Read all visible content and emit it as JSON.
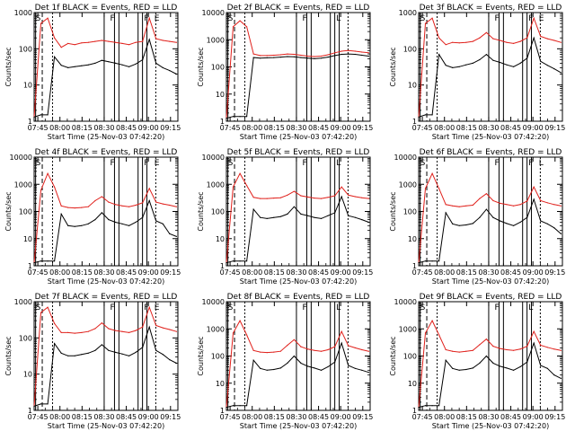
{
  "figure": {
    "colors": {
      "events": "#000000",
      "lld": "#e0201b",
      "axis": "#000000"
    }
  },
  "chart_data": [
    {
      "type": "line",
      "title": "Det 1f BLACK = Events, RED = LLD",
      "xlabel": "Start Time (25-Nov-03 07:42:20)",
      "ylabel": "Counts/sec",
      "y_scale": "log",
      "ylim": [
        1,
        1000
      ],
      "y_ticks": [
        "1",
        "10",
        "100",
        "1000"
      ],
      "x_ticks": [
        "07:45",
        "08:00",
        "08:15",
        "08:30",
        "08:45",
        "09:00",
        "09:15"
      ],
      "markers": [
        "S",
        "F",
        "F",
        "E"
      ],
      "series": [
        {
          "name": "LLD",
          "color": "#e0201b",
          "values": [
            1.3,
            500,
            700,
            200,
            110,
            140,
            130,
            145,
            150,
            160,
            170,
            160,
            150,
            140,
            130,
            150,
            160,
            700,
            190,
            170,
            160,
            150
          ]
        },
        {
          "name": "Events",
          "color": "#000000",
          "values": [
            1.3,
            1.5,
            1.5,
            60,
            35,
            30,
            32,
            34,
            36,
            40,
            48,
            44,
            40,
            36,
            32,
            38,
            50,
            180,
            40,
            30,
            25,
            20
          ]
        }
      ]
    },
    {
      "type": "line",
      "title": "Det 2f BLACK = Events, RED = LLD",
      "xlabel": "Start Time (25-Nov-03 07:42:20)",
      "ylabel": "Counts/sec",
      "y_scale": "log",
      "ylim": [
        1,
        10000
      ],
      "y_ticks": [
        "1",
        "10",
        "100",
        "1000",
        "10000"
      ],
      "x_ticks": [
        "07:45",
        "08:00",
        "08:15",
        "08:30",
        "08:45",
        "09:00",
        "09:15"
      ],
      "markers": [
        "S",
        "F",
        "L"
      ],
      "series": [
        {
          "name": "LLD",
          "color": "#e0201b",
          "values": [
            1.3,
            3000,
            5000,
            3000,
            300,
            260,
            260,
            270,
            280,
            300,
            290,
            270,
            250,
            240,
            250,
            280,
            330,
            380,
            400,
            380,
            350,
            330
          ]
        },
        {
          "name": "Events",
          "color": "#000000",
          "values": [
            1.3,
            1.5,
            1.5,
            1.5,
            220,
            210,
            215,
            220,
            230,
            240,
            235,
            220,
            210,
            200,
            210,
            230,
            260,
            290,
            300,
            290,
            270,
            250
          ]
        }
      ]
    },
    {
      "type": "line",
      "title": "Det 3f BLACK = Events, RED = LLD",
      "xlabel": "Start Time (25-Nov-03 07:42:20)",
      "ylabel": "Counts/sec",
      "y_scale": "log",
      "ylim": [
        1,
        1000
      ],
      "y_ticks": [
        "1",
        "10",
        "100",
        "1000"
      ],
      "x_ticks": [
        "07:45",
        "08:00",
        "08:15",
        "08:30",
        "08:45",
        "09:00",
        "09:15"
      ],
      "markers": [
        "S",
        "F",
        "F",
        "E"
      ],
      "series": [
        {
          "name": "LLD",
          "color": "#e0201b",
          "values": [
            1.3,
            500,
            700,
            200,
            130,
            150,
            145,
            150,
            160,
            200,
            280,
            190,
            170,
            150,
            140,
            160,
            200,
            700,
            220,
            190,
            170,
            150
          ]
        },
        {
          "name": "Events",
          "color": "#000000",
          "values": [
            1.3,
            1.5,
            1.5,
            70,
            35,
            30,
            32,
            36,
            40,
            50,
            70,
            48,
            42,
            36,
            32,
            40,
            55,
            200,
            45,
            35,
            28,
            22
          ]
        }
      ]
    },
    {
      "type": "line",
      "title": "Det 4f BLACK = Events, RED = LLD",
      "xlabel": "Start Time (25-Nov-03 07:42:20)",
      "ylabel": "Counts/sec",
      "y_scale": "log",
      "ylim": [
        1,
        10000
      ],
      "y_ticks": [
        "1",
        "10",
        "100",
        "1000",
        "10000"
      ],
      "x_ticks": [
        "07:45",
        "08:00",
        "08:15",
        "08:30",
        "08:45",
        "09:00",
        "09:15"
      ],
      "markers": [
        "S",
        "F",
        "F",
        "E"
      ],
      "series": [
        {
          "name": "LLD",
          "color": "#e0201b",
          "values": [
            1.3,
            600,
            2500,
            800,
            160,
            140,
            135,
            140,
            150,
            250,
            350,
            220,
            180,
            160,
            150,
            170,
            210,
            700,
            220,
            190,
            170,
            150
          ]
        },
        {
          "name": "Events",
          "color": "#000000",
          "values": [
            1.3,
            1.5,
            1.5,
            1.5,
            80,
            30,
            28,
            30,
            35,
            50,
            90,
            50,
            40,
            35,
            30,
            40,
            60,
            250,
            45,
            35,
            15,
            12
          ]
        }
      ]
    },
    {
      "type": "line",
      "title": "Det 5f BLACK = Events, RED = LLD",
      "xlabel": "Start Time (25-Nov-03 07:42:20)",
      "ylabel": "Counts/sec",
      "y_scale": "log",
      "ylim": [
        1,
        10000
      ],
      "y_ticks": [
        "1",
        "10",
        "100",
        "1000",
        "10000"
      ],
      "x_ticks": [
        "07:45",
        "08:00",
        "08:15",
        "08:30",
        "08:45",
        "09:00",
        "09:15"
      ],
      "markers": [
        "S",
        "F",
        "L"
      ],
      "series": [
        {
          "name": "LLD",
          "color": "#e0201b",
          "values": [
            1.3,
            800,
            2500,
            900,
            330,
            300,
            300,
            310,
            320,
            400,
            550,
            380,
            340,
            310,
            300,
            330,
            380,
            800,
            400,
            350,
            320,
            300
          ]
        },
        {
          "name": "Events",
          "color": "#000000",
          "values": [
            1.3,
            1.5,
            1.5,
            1.5,
            120,
            60,
            55,
            60,
            65,
            80,
            150,
            80,
            70,
            60,
            55,
            70,
            90,
            350,
            70,
            60,
            50,
            40
          ]
        }
      ]
    },
    {
      "type": "line",
      "title": "Det 6f BLACK = Events, RED = LLD",
      "xlabel": "Start Time (25-Nov-03 07:42:20)",
      "ylabel": "Counts/sec",
      "y_scale": "log",
      "ylim": [
        1,
        10000
      ],
      "y_ticks": [
        "1",
        "10",
        "100",
        "1000",
        "10000"
      ],
      "x_ticks": [
        "07:45",
        "08:00",
        "08:15",
        "08:30",
        "08:45",
        "09:00",
        "09:15"
      ],
      "markers": [
        "S",
        "F",
        "F",
        "L"
      ],
      "series": [
        {
          "name": "LLD",
          "color": "#e0201b",
          "values": [
            1.3,
            700,
            2500,
            700,
            180,
            160,
            150,
            160,
            170,
            300,
            450,
            250,
            200,
            180,
            160,
            180,
            240,
            800,
            250,
            210,
            180,
            160
          ]
        },
        {
          "name": "Events",
          "color": "#000000",
          "values": [
            1.3,
            1.5,
            1.5,
            1.5,
            90,
            35,
            30,
            32,
            36,
            60,
            120,
            60,
            45,
            36,
            30,
            40,
            60,
            280,
            45,
            35,
            25,
            15
          ]
        }
      ]
    },
    {
      "type": "line",
      "title": "Det 7f BLACK = Events, RED = LLD",
      "xlabel": "Start Time (25-Nov-03 07:42:20)",
      "ylabel": "Counts/sec",
      "y_scale": "log",
      "ylim": [
        1,
        1000
      ],
      "y_ticks": [
        "1",
        "10",
        "100",
        "1000"
      ],
      "x_ticks": [
        "07:45",
        "08:00",
        "08:15",
        "08:30",
        "08:45",
        "09:00",
        "09:15"
      ],
      "markers": [
        "S",
        "F",
        "F",
        "E"
      ],
      "series": [
        {
          "name": "LLD",
          "color": "#e0201b",
          "values": [
            1.3,
            500,
            700,
            250,
            140,
            140,
            135,
            140,
            150,
            180,
            260,
            180,
            160,
            150,
            140,
            160,
            200,
            700,
            220,
            190,
            170,
            150
          ]
        },
        {
          "name": "Events",
          "color": "#000000",
          "values": [
            1.3,
            1.5,
            1.5,
            70,
            38,
            32,
            32,
            35,
            38,
            45,
            65,
            45,
            40,
            36,
            32,
            40,
            55,
            200,
            45,
            35,
            25,
            20
          ]
        }
      ]
    },
    {
      "type": "line",
      "title": "Det 8f BLACK = Events, RED = LLD",
      "xlabel": "Start Time (25-Nov-03 07:42:20)",
      "ylabel": "Counts/sec",
      "y_scale": "log",
      "ylim": [
        1,
        10000
      ],
      "y_ticks": [
        "1",
        "10",
        "100",
        "1000",
        "10000"
      ],
      "x_ticks": [
        "07:45",
        "08:00",
        "08:15",
        "08:30",
        "08:45",
        "09:00",
        "09:15"
      ],
      "markers": [
        "S",
        "F",
        "L"
      ],
      "series": [
        {
          "name": "LLD",
          "color": "#e0201b",
          "values": [
            1.3,
            700,
            2000,
            600,
            160,
            140,
            135,
            140,
            150,
            250,
            400,
            220,
            180,
            160,
            150,
            170,
            220,
            800,
            240,
            200,
            170,
            150
          ]
        },
        {
          "name": "Events",
          "color": "#000000",
          "values": [
            1.3,
            1.5,
            1.5,
            1.5,
            70,
            35,
            30,
            32,
            36,
            55,
            100,
            55,
            42,
            36,
            30,
            40,
            60,
            300,
            45,
            35,
            30,
            25
          ]
        }
      ]
    },
    {
      "type": "line",
      "title": "Det 9f BLACK = Events, RED = LLD",
      "xlabel": "Start Time (25-Nov-03 07:42:20)",
      "ylabel": "Counts/sec",
      "y_scale": "log",
      "ylim": [
        1,
        10000
      ],
      "y_ticks": [
        "1",
        "10",
        "100",
        "1000",
        "10000"
      ],
      "x_ticks": [
        "07:45",
        "08:00",
        "08:15",
        "08:30",
        "08:45",
        "09:00",
        "09:15"
      ],
      "markers": [
        "S",
        "F",
        "L"
      ],
      "series": [
        {
          "name": "LLD",
          "color": "#e0201b",
          "values": [
            1.3,
            700,
            2000,
            600,
            170,
            150,
            140,
            150,
            160,
            260,
            420,
            230,
            190,
            170,
            160,
            180,
            230,
            800,
            250,
            210,
            180,
            160
          ]
        },
        {
          "name": "Events",
          "color": "#000000",
          "values": [
            1.3,
            1.5,
            1.5,
            1.5,
            70,
            35,
            30,
            32,
            36,
            55,
            100,
            55,
            42,
            36,
            30,
            40,
            60,
            300,
            45,
            35,
            20,
            15
          ]
        }
      ]
    }
  ]
}
